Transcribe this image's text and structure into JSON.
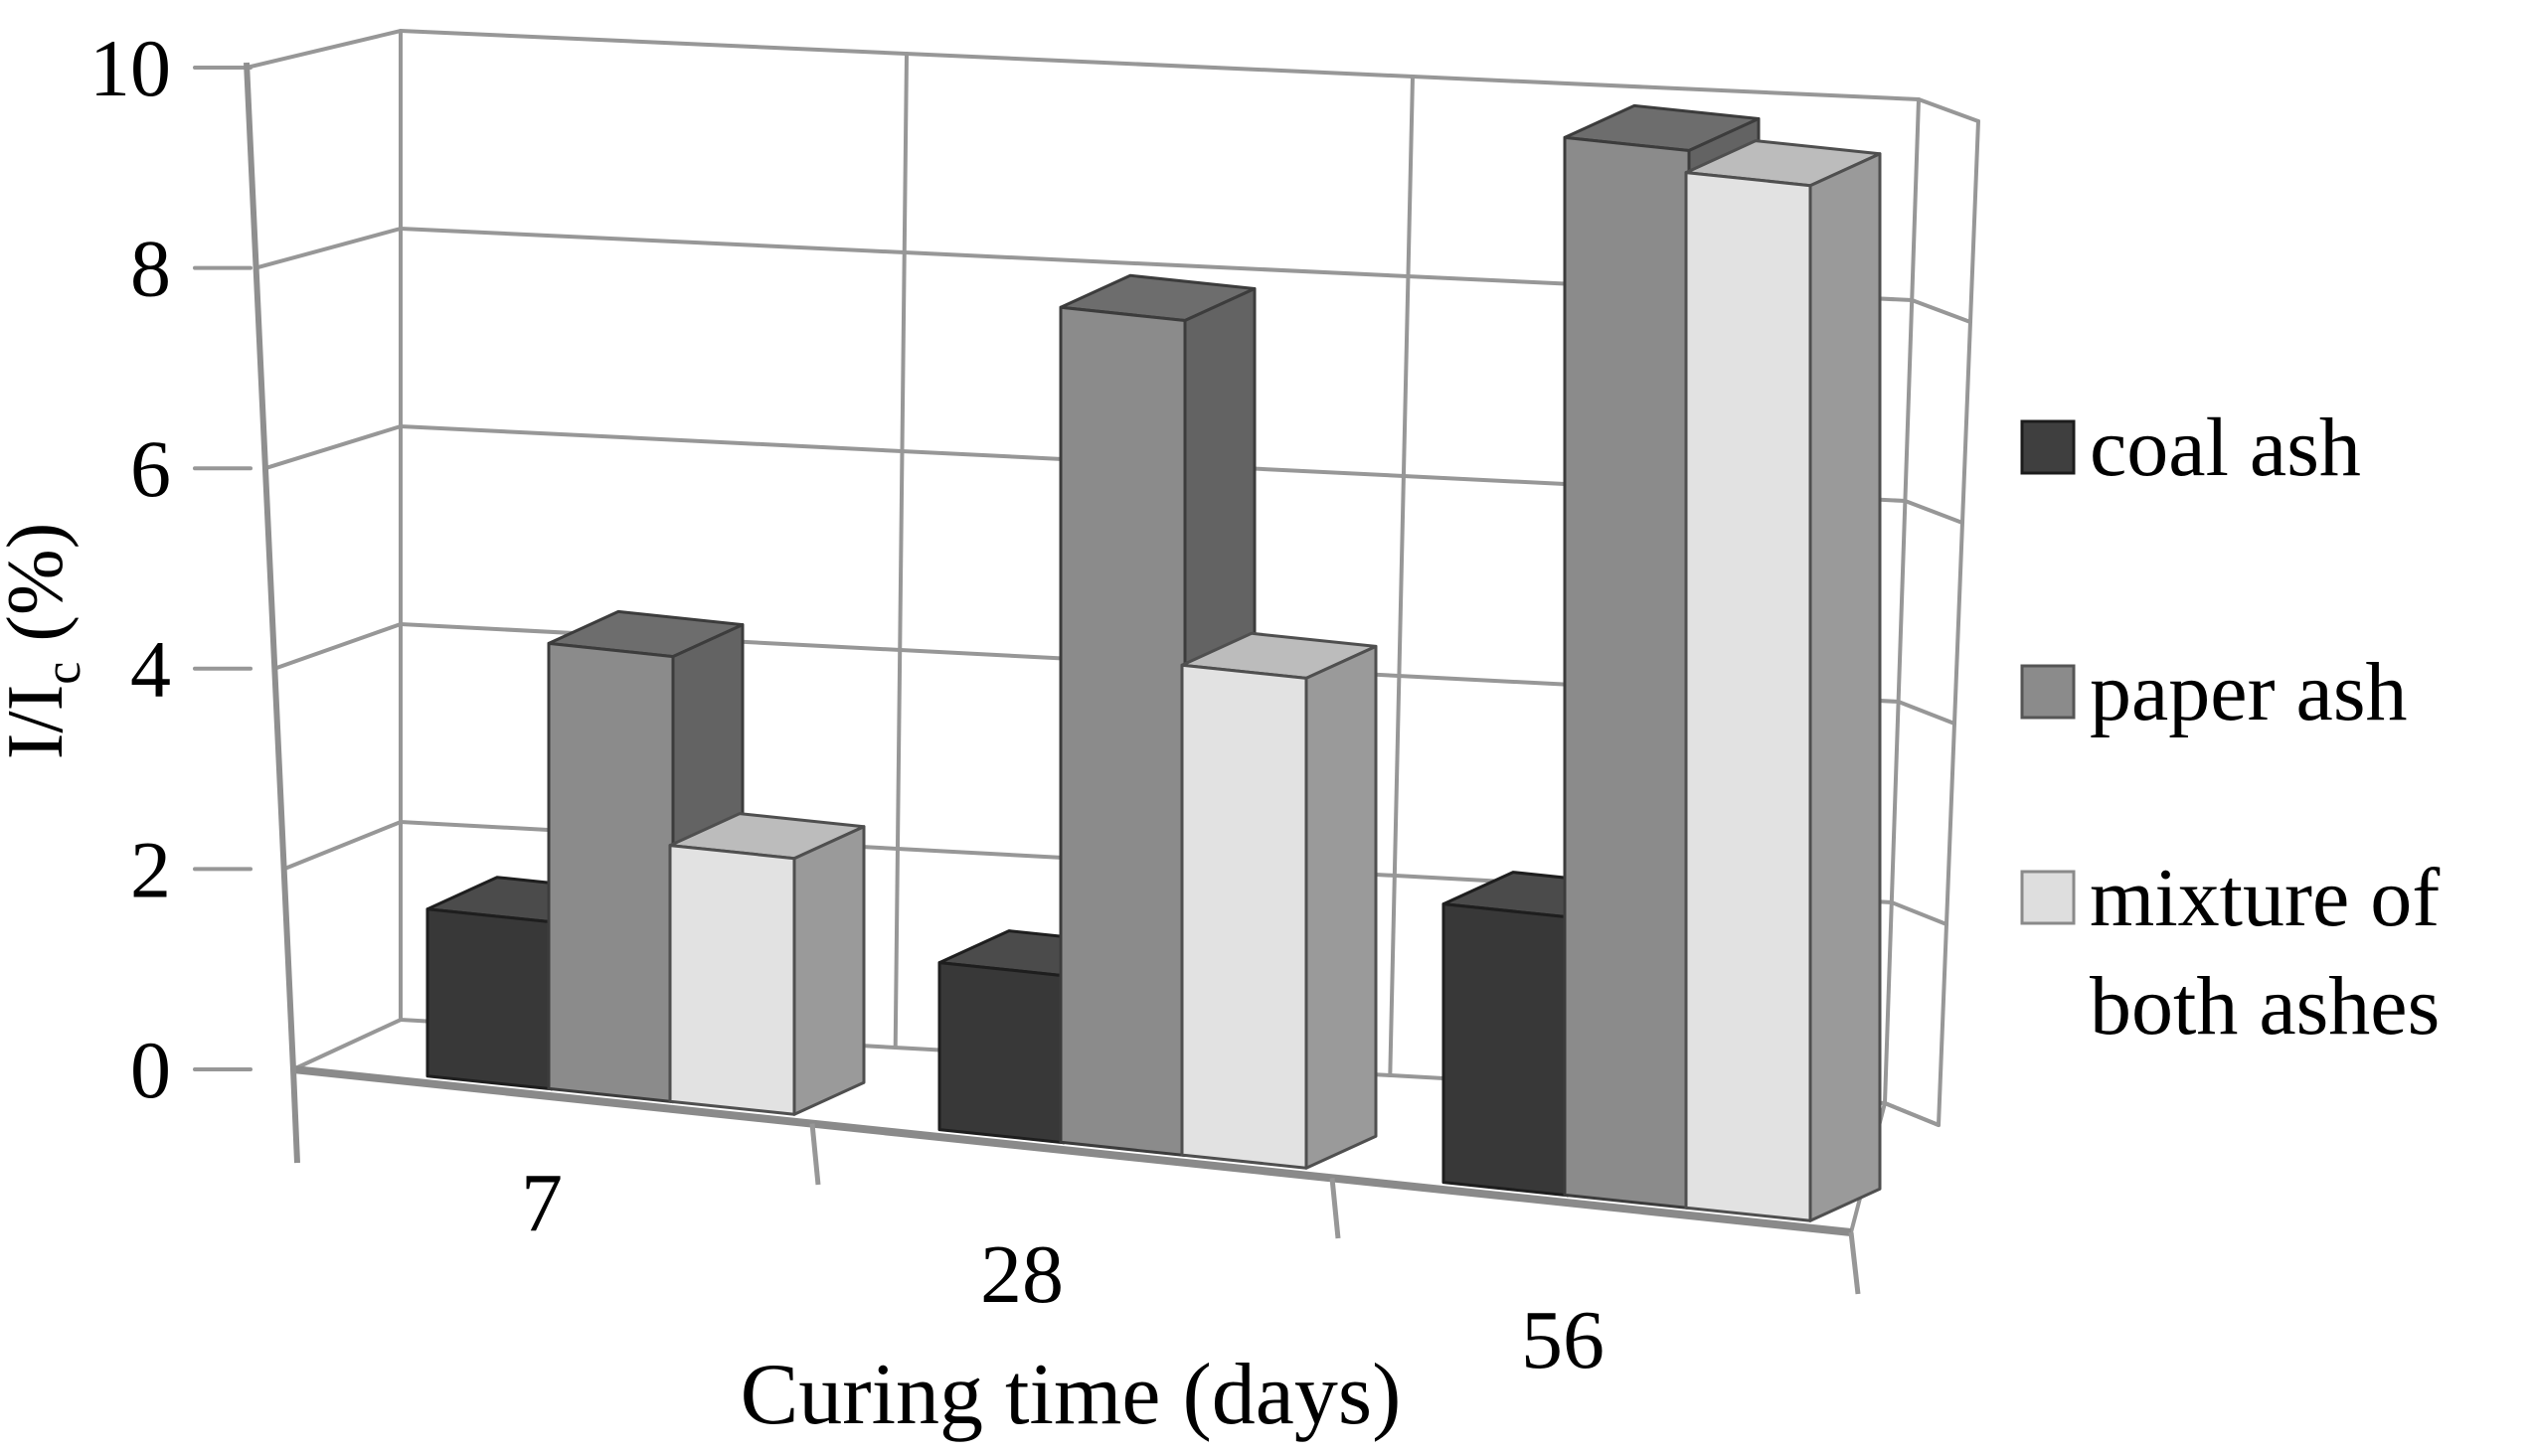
{
  "figure": {
    "background_color": "#ffffff",
    "kind": "3d-grouped-bar-chart"
  },
  "chart_data": {
    "type": "bar",
    "projection": "3d",
    "title": "",
    "xlabel": "Curing time (days)",
    "ylabel": "I/Ic (%)",
    "ylabel_parts": {
      "prefix": "I/I",
      "subscript": "c",
      "suffix": " (%)"
    },
    "categories": [
      "7",
      "28",
      "56"
    ],
    "series": [
      {
        "name": "coal ash",
        "values": [
          1.5,
          1.5,
          2.5
        ]
      },
      {
        "name": "paper ash",
        "values": [
          4.0,
          7.5,
          9.5
        ]
      },
      {
        "name": "mixture of both ashes",
        "values": [
          2.3,
          4.4,
          9.3
        ]
      }
    ],
    "ylim": [
      0,
      10
    ],
    "yticks": [
      "0",
      "2",
      "4",
      "6",
      "8",
      "10"
    ],
    "ytick_values": [
      0,
      2,
      4,
      6,
      8,
      10
    ],
    "grid": true,
    "legend_position": "right",
    "legend_entries": [
      {
        "label_lines": [
          "coal ash"
        ],
        "swatch_color": "#3f3f3f",
        "swatch_border": "#1c1c1c"
      },
      {
        "label_lines": [
          "paper ash"
        ],
        "swatch_color": "#8b8b8b",
        "swatch_border": "#555555"
      },
      {
        "label_lines": [
          "mixture of",
          "both ashes"
        ],
        "swatch_color": "#dedede",
        "swatch_border": "#8a8a8a"
      }
    ]
  },
  "colors": {
    "grid_line": "#979797",
    "wall_edge": "#8f8f8f",
    "floor_front_edge": "#8a8a8a",
    "text": "#000000",
    "series_faces": [
      {
        "front": "#383838",
        "top": "#4b4b4b",
        "side": "#242424",
        "outline": "#1e1e1e"
      },
      {
        "front": "#8b8b8b",
        "top": "#6d6d6d",
        "side": "#636363",
        "outline": "#3c3c3c"
      },
      {
        "front": "#e2e2e2",
        "top": "#bcbcbc",
        "side": "#9a9a9a",
        "outline": "#4f4f4f"
      }
    ]
  }
}
